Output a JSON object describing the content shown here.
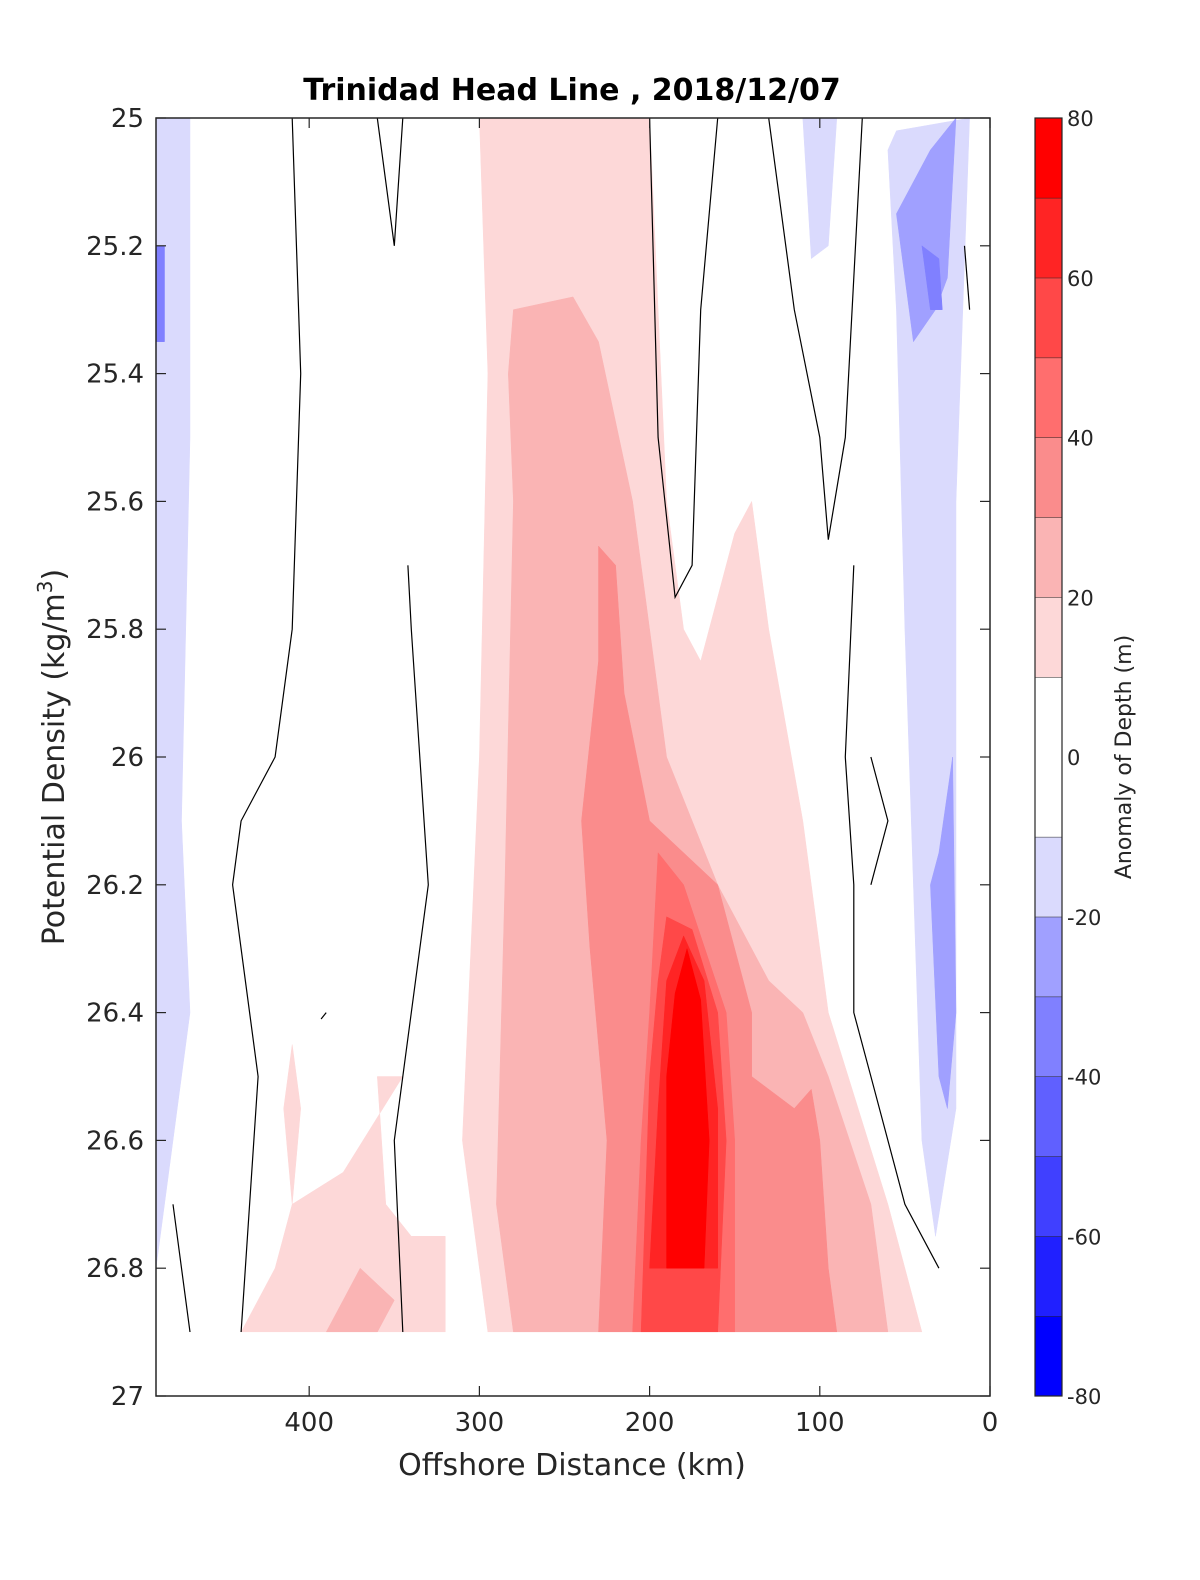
{
  "chart_data": {
    "type": "heatmap",
    "subtype": "filled-contour",
    "title": "Trinidad Head Line , 2018/12/07",
    "xlabel": "Offshore Distance (km)",
    "ylabel_main": "Potential Density (kg/m",
    "ylabel_sup": "3",
    "ylabel_close": ")",
    "xlim": [
      490,
      0
    ],
    "x_reversed": true,
    "ylim": [
      25,
      27
    ],
    "y_reversed": true,
    "x_ticks": [
      400,
      300,
      200,
      100,
      0
    ],
    "x_tick_labels": [
      "400",
      "300",
      "200",
      "100",
      "0"
    ],
    "y_ticks": [
      25,
      25.2,
      25.4,
      25.6,
      25.8,
      26,
      26.2,
      26.4,
      26.6,
      26.8,
      27
    ],
    "y_tick_labels": [
      "25",
      "25.2",
      "25.4",
      "25.6",
      "25.8",
      "26",
      "26.2",
      "26.4",
      "26.6",
      "26.8",
      "27"
    ],
    "colorbar": {
      "label": "Anomaly of Depth (m)",
      "range": [
        -80,
        80
      ],
      "tick_values": [
        -80,
        -60,
        -40,
        -20,
        0,
        20,
        40,
        60,
        80
      ],
      "tick_labels": [
        "-80",
        "-60",
        "-40",
        "-20",
        "0",
        "20",
        "40",
        "60",
        "80"
      ],
      "levels": [
        {
          "from": -80,
          "to": -70,
          "color": "#0000ff"
        },
        {
          "from": -70,
          "to": -60,
          "color": "#2020ff"
        },
        {
          "from": -60,
          "to": -50,
          "color": "#4040ff"
        },
        {
          "from": -50,
          "to": -40,
          "color": "#6060ff"
        },
        {
          "from": -40,
          "to": -30,
          "color": "#8080ff"
        },
        {
          "from": -30,
          "to": -20,
          "color": "#a0a0ff"
        },
        {
          "from": -20,
          "to": -10,
          "color": "#dadafd"
        },
        {
          "from": -10,
          "to": 10,
          "color": "#ffffff"
        },
        {
          "from": 10,
          "to": 20,
          "color": "#fdd8d8"
        },
        {
          "from": 20,
          "to": 30,
          "color": "#fab4b4"
        },
        {
          "from": 30,
          "to": 40,
          "color": "#fa8c8c"
        },
        {
          "from": 40,
          "to": 50,
          "color": "#ff6e6e"
        },
        {
          "from": 50,
          "to": 60,
          "color": "#ff4848"
        },
        {
          "from": 60,
          "to": 70,
          "color": "#ff2424"
        },
        {
          "from": 70,
          "to": 80,
          "color": "#ff0000"
        }
      ]
    },
    "contour_line_color": "#000000",
    "data_bottom_density": 26.9,
    "regions": [
      {
        "level": 10,
        "points": [
          [
            290,
            25
          ],
          [
            200,
            25
          ],
          [
            190,
            25.6
          ],
          [
            180,
            25.8
          ],
          [
            170,
            25.85
          ],
          [
            150,
            25.65
          ],
          [
            140,
            25.6
          ],
          [
            130,
            25.8
          ],
          [
            110,
            26.1
          ],
          [
            95,
            26.4
          ],
          [
            60,
            26.7
          ],
          [
            40,
            26.9
          ],
          [
            295,
            26.9
          ],
          [
            310,
            26.6
          ],
          [
            300,
            26
          ],
          [
            295,
            25.4
          ],
          [
            300,
            25
          ]
        ]
      },
      {
        "level": 10,
        "points": [
          [
            410,
            26.45
          ],
          [
            405,
            26.55
          ],
          [
            410,
            26.7
          ],
          [
            415,
            26.55
          ]
        ]
      },
      {
        "level": 10,
        "points": [
          [
            345,
            26.5
          ],
          [
            360,
            26.5
          ],
          [
            355,
            26.7
          ],
          [
            340,
            26.75
          ],
          [
            320,
            26.75
          ],
          [
            320,
            26.9
          ],
          [
            440,
            26.9
          ],
          [
            420,
            26.8
          ],
          [
            410,
            26.7
          ],
          [
            380,
            26.65
          ]
        ]
      },
      {
        "level": 20,
        "points": [
          [
            280,
            25.3
          ],
          [
            245,
            25.28
          ],
          [
            230,
            25.35
          ],
          [
            210,
            25.6
          ],
          [
            190,
            26
          ],
          [
            160,
            26.2
          ],
          [
            130,
            26.35
          ],
          [
            110,
            26.4
          ],
          [
            95,
            26.5
          ],
          [
            70,
            26.7
          ],
          [
            60,
            26.9
          ],
          [
            280,
            26.9
          ],
          [
            290,
            26.7
          ],
          [
            285,
            26.2
          ],
          [
            280,
            25.6
          ],
          [
            283,
            25.4
          ]
        ]
      },
      {
        "level": 20,
        "points": [
          [
            370,
            26.8
          ],
          [
            380,
            26.85
          ],
          [
            390,
            26.9
          ],
          [
            360,
            26.9
          ],
          [
            350,
            26.85
          ]
        ]
      },
      {
        "level": 30,
        "points": [
          [
            230,
            25.67
          ],
          [
            220,
            25.7
          ],
          [
            215,
            25.9
          ],
          [
            200,
            26.1
          ],
          [
            160,
            26.2
          ],
          [
            140,
            26.4
          ],
          [
            140,
            26.5
          ],
          [
            115,
            26.55
          ],
          [
            105,
            26.52
          ],
          [
            100,
            26.6
          ],
          [
            95,
            26.8
          ],
          [
            90,
            26.9
          ],
          [
            230,
            26.9
          ],
          [
            225,
            26.6
          ],
          [
            235,
            26.3
          ],
          [
            240,
            26.1
          ],
          [
            230,
            25.85
          ]
        ]
      },
      {
        "level": 40,
        "points": [
          [
            195,
            26.15
          ],
          [
            180,
            26.2
          ],
          [
            155,
            26.4
          ],
          [
            150,
            26.6
          ],
          [
            150,
            26.9
          ],
          [
            210,
            26.9
          ],
          [
            205,
            26.6
          ],
          [
            200,
            26.4
          ]
        ]
      },
      {
        "level": 50,
        "points": [
          [
            190,
            26.25
          ],
          [
            175,
            26.27
          ],
          [
            160,
            26.4
          ],
          [
            155,
            26.6
          ],
          [
            160,
            26.9
          ],
          [
            205,
            26.9
          ],
          [
            200,
            26.5
          ],
          [
            195,
            26.35
          ]
        ]
      },
      {
        "level": 60,
        "points": [
          [
            180,
            26.28
          ],
          [
            168,
            26.35
          ],
          [
            160,
            26.55
          ],
          [
            160,
            26.8
          ],
          [
            200,
            26.8
          ],
          [
            195,
            26.55
          ],
          [
            190,
            26.35
          ]
        ]
      },
      {
        "level": 70,
        "points": [
          [
            178,
            26.3
          ],
          [
            170,
            26.38
          ],
          [
            165,
            26.6
          ],
          [
            168,
            26.8
          ],
          [
            190,
            26.8
          ],
          [
            190,
            26.5
          ],
          [
            185,
            26.37
          ]
        ]
      },
      {
        "level": -10,
        "points": [
          [
            490,
            25
          ],
          [
            470,
            25
          ],
          [
            470,
            25.5
          ],
          [
            475,
            26.1
          ],
          [
            470,
            26.4
          ],
          [
            480,
            26.6
          ],
          [
            490,
            26.8
          ]
        ]
      },
      {
        "level": -10,
        "points": [
          [
            110,
            25
          ],
          [
            90,
            25
          ],
          [
            95,
            25.2
          ],
          [
            105,
            25.22
          ]
        ]
      },
      {
        "level": -10,
        "points": [
          [
            60,
            25.05
          ],
          [
            55,
            25.3
          ],
          [
            50,
            25.8
          ],
          [
            45,
            26.2
          ],
          [
            40,
            26.6
          ],
          [
            32,
            26.75
          ],
          [
            20,
            26.55
          ],
          [
            20,
            25.6
          ],
          [
            12,
            25.0
          ],
          [
            55,
            25.02
          ]
        ]
      },
      {
        "level": -20,
        "points": [
          [
            55,
            25.15
          ],
          [
            45,
            25.35
          ],
          [
            32,
            25.3
          ],
          [
            25,
            25.25
          ],
          [
            20,
            25.0
          ],
          [
            35,
            25.05
          ]
        ]
      },
      {
        "level": -20,
        "points": [
          [
            35,
            26.2
          ],
          [
            30,
            26.5
          ],
          [
            25,
            26.55
          ],
          [
            20,
            26.4
          ],
          [
            22,
            26.0
          ],
          [
            30,
            26.15
          ]
        ]
      },
      {
        "level": -30,
        "points": [
          [
            40,
            25.2
          ],
          [
            30,
            25.22
          ],
          [
            28,
            25.3
          ],
          [
            35,
            25.3
          ]
        ]
      },
      {
        "level": -30,
        "points": [
          [
            490,
            25.2
          ],
          [
            485,
            25.2
          ],
          [
            485,
            25.35
          ],
          [
            490,
            25.35
          ]
        ]
      }
    ],
    "contour_lines": [
      [
        [
          410,
          25
        ],
        [
          405,
          25.4
        ],
        [
          410,
          25.8
        ],
        [
          420,
          26.0
        ],
        [
          440,
          26.1
        ],
        [
          445,
          26.2
        ],
        [
          430,
          26.5
        ],
        [
          440,
          26.9
        ]
      ],
      [
        [
          360,
          25
        ],
        [
          350,
          25.2
        ],
        [
          345,
          25.0
        ]
      ],
      [
        [
          342,
          25.7
        ],
        [
          340,
          25.8
        ],
        [
          335,
          26
        ],
        [
          330,
          26.2
        ],
        [
          340,
          26.4
        ],
        [
          350,
          26.6
        ],
        [
          345,
          26.9
        ]
      ],
      [
        [
          200,
          25.0
        ],
        [
          195,
          25.5
        ],
        [
          185,
          25.75
        ],
        [
          175,
          25.7
        ],
        [
          170,
          25.3
        ],
        [
          160,
          25.0
        ]
      ],
      [
        [
          130,
          25
        ],
        [
          115,
          25.3
        ],
        [
          100,
          25.5
        ],
        [
          95,
          25.66
        ],
        [
          85,
          25.5
        ],
        [
          75,
          25.0
        ]
      ],
      [
        [
          80,
          25.7
        ],
        [
          85,
          26.0
        ],
        [
          80,
          26.2
        ],
        [
          80,
          26.4
        ],
        [
          70,
          26.5
        ],
        [
          50,
          26.7
        ],
        [
          30,
          26.8
        ]
      ],
      [
        [
          70,
          26.0
        ],
        [
          60,
          26.1
        ],
        [
          70,
          26.2
        ]
      ],
      [
        [
          480,
          26.7
        ],
        [
          475,
          26.8
        ],
        [
          470,
          26.9
        ]
      ],
      [
        [
          15,
          25.2
        ],
        [
          12,
          25.3
        ]
      ],
      [
        [
          390,
          26.4
        ],
        [
          393,
          26.41
        ]
      ]
    ]
  }
}
